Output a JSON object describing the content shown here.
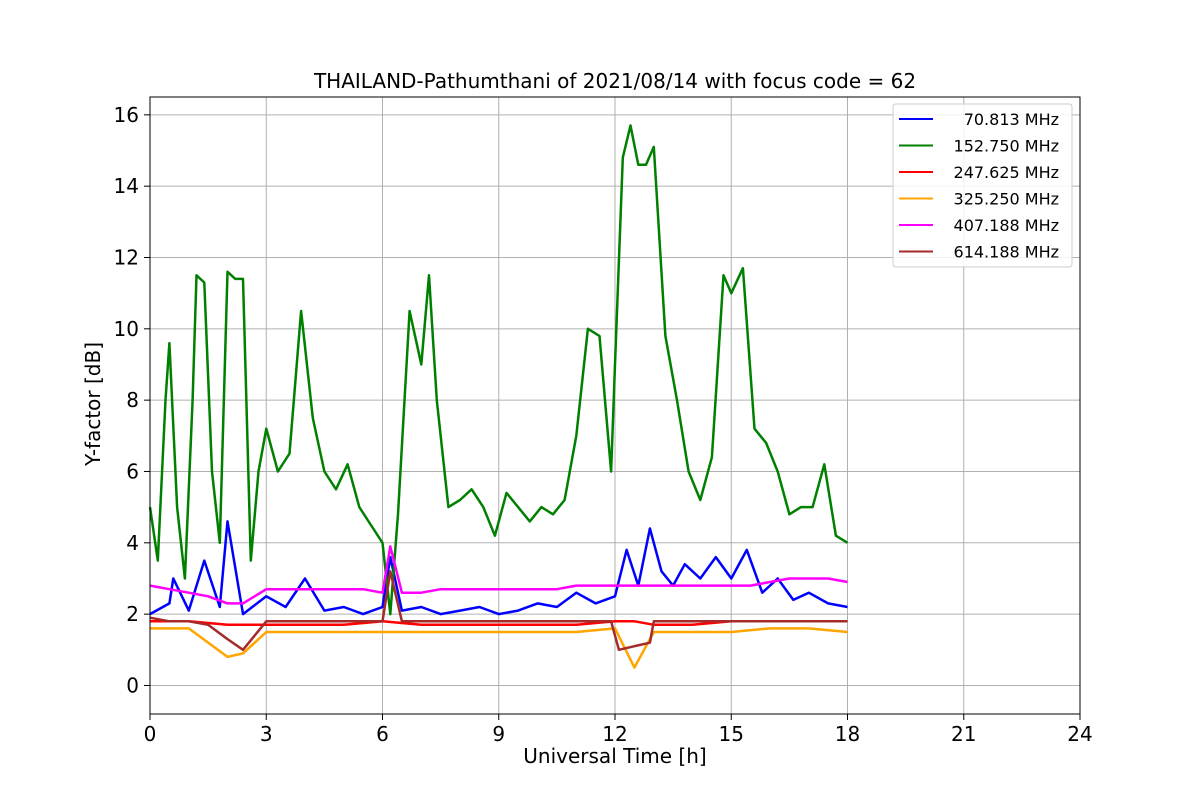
{
  "chart_data": {
    "type": "line",
    "title": "THAILAND-Pathumthani of 2021/08/14 with focus code = 62",
    "xlabel": "Universal Time [h]",
    "ylabel": "Y-factor [dB]",
    "xlim": [
      0,
      24
    ],
    "ylim": [
      -0.8,
      16.5
    ],
    "xticks": [
      0,
      3,
      6,
      9,
      12,
      15,
      18,
      21,
      24
    ],
    "yticks": [
      0,
      2,
      4,
      6,
      8,
      10,
      12,
      14,
      16
    ],
    "grid": true,
    "legend_position": "top-right",
    "series": [
      {
        "name": "70.813 MHz",
        "color": "#0000ff",
        "x": [
          0,
          0.5,
          0.6,
          1.0,
          1.4,
          1.8,
          2.0,
          2.4,
          3.0,
          3.5,
          4.0,
          4.5,
          5.0,
          5.5,
          6.0,
          6.2,
          6.5,
          7.0,
          7.5,
          8.0,
          8.5,
          9.0,
          9.5,
          10.0,
          10.5,
          11.0,
          11.5,
          12.0,
          12.3,
          12.6,
          12.9,
          13.2,
          13.5,
          13.8,
          14.2,
          14.6,
          15.0,
          15.4,
          15.8,
          16.2,
          16.6,
          17.0,
          17.5,
          18.0
        ],
        "y": [
          2.0,
          2.3,
          3.0,
          2.1,
          3.5,
          2.2,
          4.6,
          2.0,
          2.5,
          2.2,
          3.0,
          2.1,
          2.2,
          2.0,
          2.2,
          3.6,
          2.1,
          2.2,
          2.0,
          2.1,
          2.2,
          2.0,
          2.1,
          2.3,
          2.2,
          2.6,
          2.3,
          2.5,
          3.8,
          2.8,
          4.4,
          3.2,
          2.8,
          3.4,
          3.0,
          3.6,
          3.0,
          3.8,
          2.6,
          3.0,
          2.4,
          2.6,
          2.3,
          2.2
        ]
      },
      {
        "name": "152.750 MHz",
        "color": "#008000",
        "x": [
          0,
          0.2,
          0.4,
          0.5,
          0.7,
          0.9,
          1.1,
          1.2,
          1.4,
          1.6,
          1.8,
          2.0,
          2.2,
          2.4,
          2.6,
          2.8,
          3.0,
          3.3,
          3.6,
          3.9,
          4.2,
          4.5,
          4.8,
          5.1,
          5.4,
          5.7,
          6.0,
          6.2,
          6.4,
          6.7,
          7.0,
          7.2,
          7.4,
          7.7,
          8.0,
          8.3,
          8.6,
          8.9,
          9.2,
          9.5,
          9.8,
          10.1,
          10.4,
          10.7,
          11.0,
          11.3,
          11.6,
          11.9,
          12.0,
          12.2,
          12.4,
          12.6,
          12.8,
          13.0,
          13.3,
          13.6,
          13.9,
          14.2,
          14.5,
          14.8,
          15.0,
          15.3,
          15.6,
          15.9,
          16.2,
          16.5,
          16.8,
          17.1,
          17.4,
          17.7,
          18.0
        ],
        "y": [
          5.0,
          3.5,
          8.0,
          9.6,
          5.0,
          3.0,
          8.0,
          11.5,
          11.3,
          6.0,
          4.0,
          11.6,
          11.4,
          11.4,
          3.5,
          6.0,
          7.2,
          6.0,
          6.5,
          10.5,
          7.5,
          6.0,
          5.5,
          6.2,
          5.0,
          4.5,
          4.0,
          2.0,
          4.8,
          10.5,
          9.0,
          11.5,
          8.0,
          5.0,
          5.2,
          5.5,
          5.0,
          4.2,
          5.4,
          5.0,
          4.6,
          5.0,
          4.8,
          5.2,
          7.0,
          10.0,
          9.8,
          6.0,
          9.0,
          14.8,
          15.7,
          14.6,
          14.6,
          15.1,
          9.8,
          8.0,
          6.0,
          5.2,
          6.4,
          11.5,
          11.0,
          11.7,
          7.2,
          6.8,
          6.0,
          4.8,
          5.0,
          5.0,
          6.2,
          4.2,
          4.0
        ]
      },
      {
        "name": "247.625 MHz",
        "color": "#ff0000",
        "x": [
          0,
          1,
          2,
          2.4,
          3,
          4,
          5,
          6,
          7,
          8,
          9,
          10,
          11,
          12,
          12.5,
          13,
          14,
          15,
          16,
          17,
          18
        ],
        "y": [
          1.8,
          1.8,
          1.7,
          1.7,
          1.7,
          1.7,
          1.7,
          1.8,
          1.7,
          1.7,
          1.7,
          1.7,
          1.7,
          1.8,
          1.8,
          1.7,
          1.7,
          1.8,
          1.8,
          1.8,
          1.8
        ]
      },
      {
        "name": "325.250 MHz",
        "color": "#ffa500",
        "x": [
          0,
          1,
          2,
          2.4,
          3,
          4,
          5,
          6,
          7,
          8,
          9,
          10,
          11,
          12,
          12.5,
          13,
          14,
          15,
          16,
          17,
          18
        ],
        "y": [
          1.6,
          1.6,
          0.8,
          0.9,
          1.5,
          1.5,
          1.5,
          1.5,
          1.5,
          1.5,
          1.5,
          1.5,
          1.5,
          1.6,
          0.5,
          1.5,
          1.5,
          1.5,
          1.6,
          1.6,
          1.5
        ]
      },
      {
        "name": "407.188 MHz",
        "color": "#ff00ff",
        "x": [
          0,
          0.5,
          1.0,
          1.5,
          2.0,
          2.4,
          3.0,
          3.5,
          4.0,
          4.5,
          5.0,
          5.5,
          6.0,
          6.2,
          6.5,
          7.0,
          7.5,
          8.0,
          8.5,
          9.0,
          9.5,
          10.0,
          10.5,
          11.0,
          11.5,
          12.0,
          12.5,
          13.0,
          13.5,
          14.0,
          14.5,
          15.0,
          15.5,
          16.0,
          16.5,
          17.0,
          17.5,
          18.0
        ],
        "y": [
          2.8,
          2.7,
          2.6,
          2.5,
          2.3,
          2.3,
          2.7,
          2.7,
          2.7,
          2.7,
          2.7,
          2.7,
          2.6,
          3.9,
          2.6,
          2.6,
          2.7,
          2.7,
          2.7,
          2.7,
          2.7,
          2.7,
          2.7,
          2.8,
          2.8,
          2.8,
          2.8,
          2.8,
          2.8,
          2.8,
          2.8,
          2.8,
          2.8,
          2.9,
          3.0,
          3.0,
          3.0,
          2.9
        ]
      },
      {
        "name": "614.188 MHz",
        "color": "#a52a2a",
        "x": [
          0,
          0.5,
          1.0,
          1.5,
          2.0,
          2.4,
          3.0,
          4.0,
          5.0,
          6.0,
          6.2,
          6.5,
          7.0,
          8.0,
          9.0,
          10.0,
          11.0,
          11.9,
          12.1,
          12.5,
          12.9,
          13.0,
          14.0,
          15.0,
          16.0,
          17.0,
          18.0
        ],
        "y": [
          1.9,
          1.8,
          1.8,
          1.7,
          1.3,
          1.0,
          1.8,
          1.8,
          1.8,
          1.8,
          3.2,
          1.8,
          1.8,
          1.8,
          1.8,
          1.8,
          1.8,
          1.8,
          1.0,
          1.1,
          1.2,
          1.8,
          1.8,
          1.8,
          1.8,
          1.8,
          1.8
        ]
      }
    ]
  }
}
